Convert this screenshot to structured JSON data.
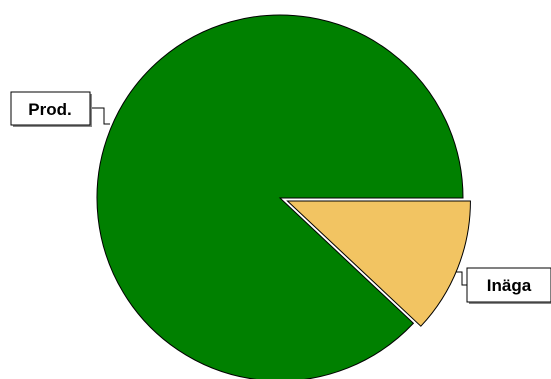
{
  "chart_data": {
    "type": "pie",
    "slices": [
      {
        "label": "Prod.",
        "value": 88,
        "color": "#008000"
      },
      {
        "label": "Inäga",
        "value": 12,
        "color": "#F2C462"
      }
    ],
    "exploded_slice": "Inäga",
    "legend": "none"
  }
}
